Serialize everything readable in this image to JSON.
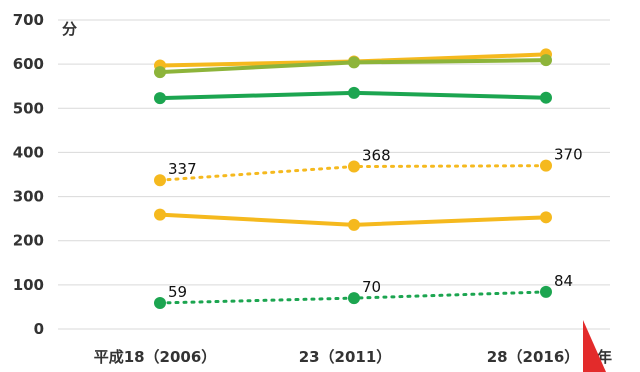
{
  "chart_data": {
    "type": "line",
    "categories": [
      "平成18（2006）",
      "23（2011）",
      "28（2016）"
    ],
    "x_unit": "年",
    "y_unit": "分",
    "ylim": [
      0,
      700
    ],
    "yticks": [
      0,
      100,
      200,
      300,
      400,
      500,
      600,
      700
    ],
    "grid": true,
    "series": [
      {
        "values": [
          597,
          606,
          622
        ],
        "color": "#F5B91E",
        "style": "solid"
      },
      {
        "values": [
          582,
          604,
          609
        ],
        "color": "#8DB43A",
        "style": "solid"
      },
      {
        "values": [
          523,
          535,
          524
        ],
        "color": "#1CA550",
        "style": "solid"
      },
      {
        "values": [
          337,
          368,
          370
        ],
        "color": "#F5B91E",
        "style": "dotted",
        "labels": [
          "337",
          "368",
          "370"
        ]
      },
      {
        "values": [
          259,
          236,
          253
        ],
        "color": "#F5B91E",
        "style": "solid"
      },
      {
        "values": [
          59,
          70,
          84
        ],
        "color": "#1CA550",
        "style": "dotted",
        "labels": [
          "59",
          "70",
          "84"
        ]
      }
    ]
  }
}
